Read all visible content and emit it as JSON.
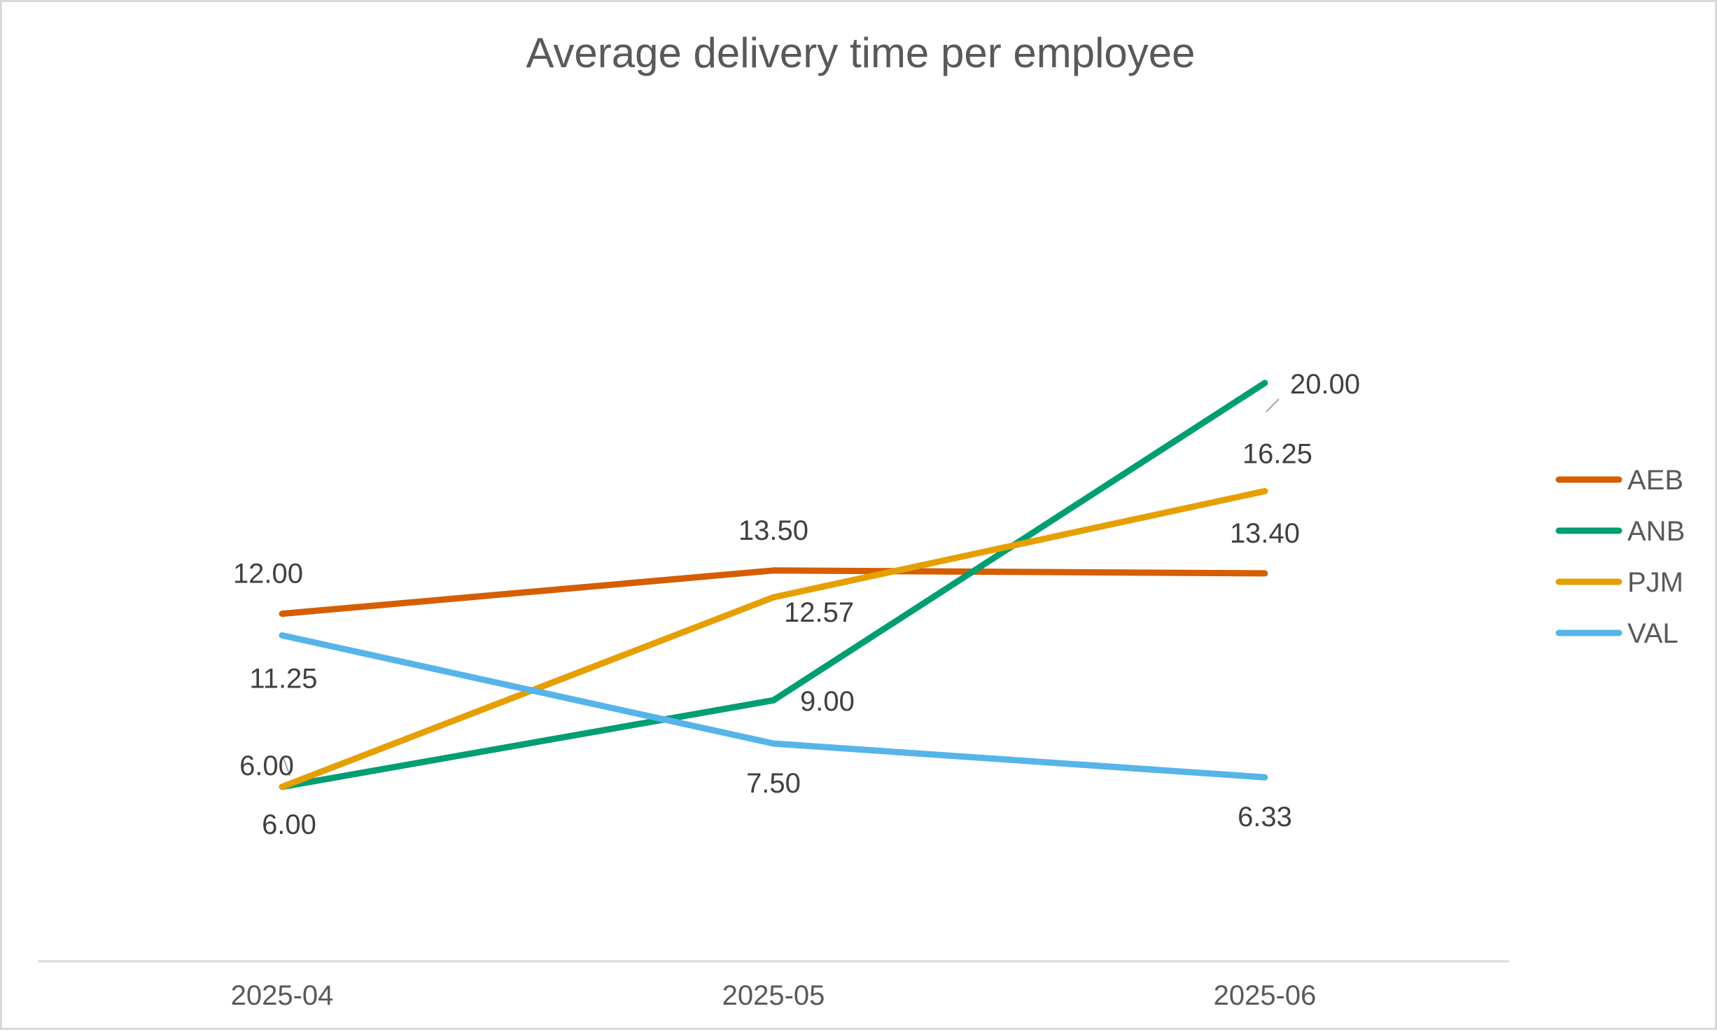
{
  "chart_data": {
    "type": "line",
    "title": "Average delivery time per employee",
    "xlabel": "",
    "ylabel": "",
    "categories": [
      "2025-04",
      "2025-05",
      "2025-06"
    ],
    "ylim": [
      0,
      25
    ],
    "grid": false,
    "legend_position": "right",
    "series": [
      {
        "name": "AEB",
        "color": "#D55E00",
        "values": [
          12.0,
          13.5,
          13.4
        ],
        "labels": [
          "12.00",
          "13.50",
          "13.40"
        ]
      },
      {
        "name": "ANB",
        "color": "#009E73",
        "values": [
          6.0,
          9.0,
          20.0
        ],
        "labels": [
          "6.00",
          "9.00",
          "20.00"
        ]
      },
      {
        "name": "PJM",
        "color": "#E69F00",
        "values": [
          6.0,
          12.57,
          16.25
        ],
        "labels": [
          "6.00",
          "12.57",
          "16.25"
        ]
      },
      {
        "name": "VAL",
        "color": "#56B4E9",
        "values": [
          11.25,
          7.5,
          6.33
        ],
        "labels": [
          "11.25",
          "7.50",
          "6.33"
        ]
      }
    ]
  }
}
